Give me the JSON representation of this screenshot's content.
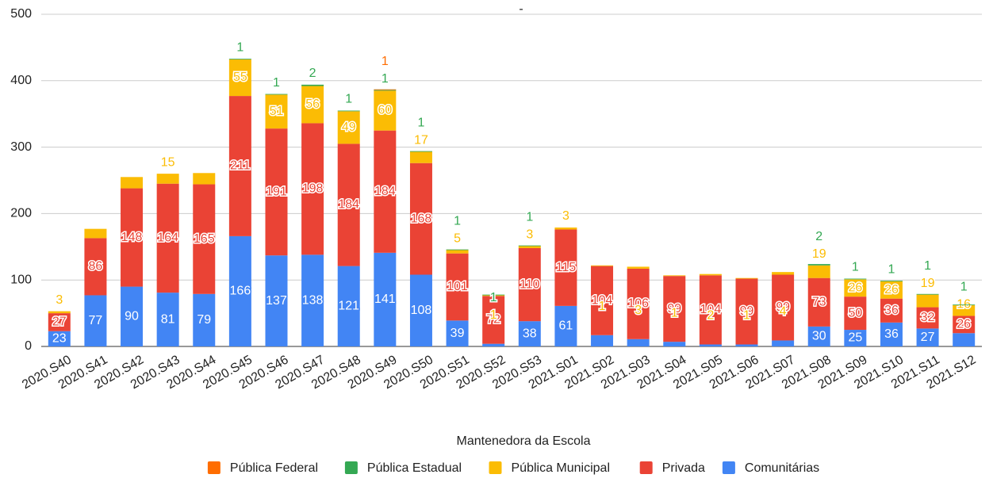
{
  "chart_data": {
    "type": "stacked_bar",
    "title": "-",
    "legend_title": "Mantenedora da Escola",
    "categories": [
      "2020.S40",
      "2020.S41",
      "2020.S42",
      "2020.S43",
      "2020.S44",
      "2020.S45",
      "2020.S46",
      "2020.S47",
      "2020.S48",
      "2020.S49",
      "2020.S50",
      "2020.S51",
      "2020.S52",
      "2020.S53",
      "2021.S01",
      "2021.S02",
      "2021.S03",
      "2021.S04",
      "2021.S05",
      "2021.S06",
      "2021.S07",
      "2021.S08",
      "2021.S09",
      "2021.S10",
      "2021.S11",
      "2021.S12"
    ],
    "series": [
      {
        "name": "Pública Federal",
        "color": "#ff6d01",
        "values": [
          null,
          null,
          null,
          null,
          null,
          null,
          null,
          null,
          null,
          1,
          null,
          null,
          null,
          null,
          null,
          null,
          null,
          null,
          null,
          null,
          null,
          null,
          null,
          null,
          null,
          null
        ]
      },
      {
        "name": "Pública Estadual",
        "color": "#34a853",
        "values": [
          null,
          null,
          null,
          null,
          null,
          1,
          1,
          2,
          1,
          1,
          1,
          1,
          1,
          1,
          null,
          null,
          null,
          null,
          null,
          null,
          null,
          2,
          1,
          1,
          1,
          1
        ]
      },
      {
        "name": "Pública Municipal",
        "color": "#fbbc04",
        "values": [
          3,
          14,
          17,
          15,
          17,
          55,
          51,
          56,
          49,
          60,
          17,
          5,
          1,
          3,
          3,
          1,
          3,
          1,
          2,
          1,
          4,
          19,
          26,
          26,
          19,
          16
        ],
        "value_labels": [
          "3",
          null,
          null,
          "15",
          null,
          "55",
          "51",
          "56",
          "49",
          "60",
          "17",
          "5",
          "1",
          "3",
          "3",
          "1",
          "3",
          "1",
          "2",
          "1",
          "4",
          "19",
          "26",
          "26",
          "19",
          "16"
        ]
      },
      {
        "name": "Privada",
        "color": "#ea4335",
        "values": [
          27,
          86,
          148,
          164,
          165,
          211,
          191,
          198,
          184,
          184,
          168,
          101,
          72,
          110,
          115,
          104,
          106,
          99,
          104,
          99,
          99,
          73,
          50,
          36,
          32,
          26
        ]
      },
      {
        "name": "Comunitárias",
        "color": "#4285f4",
        "values": [
          23,
          77,
          90,
          81,
          79,
          166,
          137,
          138,
          121,
          141,
          108,
          39,
          4,
          38,
          61,
          17,
          11,
          7,
          3,
          3,
          9,
          30,
          25,
          36,
          27,
          20
        ]
      }
    ],
    "ylim": [
      0,
      500
    ],
    "yticks": [
      0,
      100,
      200,
      300,
      400,
      500
    ],
    "grid": true,
    "legend": "bottom"
  }
}
